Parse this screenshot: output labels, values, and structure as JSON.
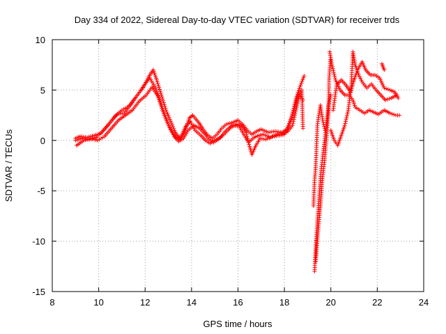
{
  "chart_data": {
    "type": "scatter",
    "title": "Day 334 of 2022, Sidereal Day-to-day VTEC variation (SDTVAR) for receiver trds",
    "xlabel": "GPS time / hours",
    "ylabel": "SDTVAR / TECUs",
    "xlim": [
      8,
      24
    ],
    "ylim": [
      -15,
      10
    ],
    "xticks": [
      "8",
      "10",
      "12",
      "14",
      "16",
      "18",
      "20",
      "22",
      "24"
    ],
    "yticks": [
      "-15",
      "-10",
      "-5",
      "0",
      "5",
      "10"
    ],
    "grid": true,
    "marker": "+",
    "series": [
      {
        "name": "SDTVAR",
        "color": "#ff0000",
        "tracks": [
          [
            [
              9.0,
              0.2
            ],
            [
              9.2,
              0.4
            ],
            [
              9.5,
              0.3
            ],
            [
              9.8,
              0.5
            ],
            [
              10.1,
              0.7
            ],
            [
              10.4,
              1.5
            ],
            [
              10.7,
              2.4
            ],
            [
              11.0,
              3.0
            ],
            [
              11.3,
              3.4
            ],
            [
              11.6,
              4.3
            ],
            [
              11.9,
              5.2
            ],
            [
              12.15,
              6.3
            ],
            [
              12.35,
              7.0
            ],
            [
              12.5,
              6.0
            ],
            [
              12.7,
              4.5
            ],
            [
              12.9,
              3.0
            ],
            [
              13.1,
              1.9
            ],
            [
              13.3,
              0.8
            ],
            [
              13.5,
              0.1
            ],
            [
              13.7,
              0.8
            ],
            [
              13.9,
              2.2
            ],
            [
              14.05,
              2.5
            ],
            [
              14.3,
              1.8
            ],
            [
              14.5,
              1.1
            ],
            [
              14.7,
              0.5
            ],
            [
              14.9,
              0.2
            ],
            [
              15.1,
              0.6
            ],
            [
              15.3,
              1.2
            ],
            [
              15.5,
              1.6
            ],
            [
              15.8,
              1.8
            ],
            [
              16.0,
              2.0
            ],
            [
              16.2,
              1.6
            ],
            [
              16.4,
              1.0
            ],
            [
              16.6,
              0.6
            ],
            [
              16.8,
              0.9
            ],
            [
              17.0,
              1.1
            ],
            [
              17.3,
              0.8
            ],
            [
              17.6,
              0.9
            ],
            [
              17.9,
              0.8
            ],
            [
              18.1,
              1.1
            ],
            [
              18.3,
              2.2
            ],
            [
              18.5,
              4.2
            ],
            [
              18.7,
              5.5
            ],
            [
              18.85,
              6.4
            ]
          ],
          [
            [
              9.0,
              0.0
            ],
            [
              9.3,
              0.2
            ],
            [
              9.6,
              0.1
            ],
            [
              9.9,
              0.3
            ],
            [
              10.2,
              1.0
            ],
            [
              10.5,
              1.8
            ],
            [
              10.8,
              2.6
            ],
            [
              11.1,
              2.7
            ],
            [
              11.4,
              3.6
            ],
            [
              11.7,
              4.6
            ],
            [
              12.0,
              5.6
            ],
            [
              12.2,
              6.2
            ],
            [
              12.45,
              5.2
            ],
            [
              12.65,
              3.9
            ],
            [
              12.85,
              2.5
            ],
            [
              13.05,
              1.3
            ],
            [
              13.25,
              0.4
            ],
            [
              13.45,
              -0.1
            ],
            [
              13.65,
              0.2
            ],
            [
              13.85,
              1.0
            ],
            [
              14.1,
              1.5
            ],
            [
              14.35,
              1.2
            ],
            [
              14.55,
              0.7
            ],
            [
              14.75,
              0.1
            ],
            [
              14.95,
              -0.2
            ],
            [
              15.15,
              0.1
            ],
            [
              15.4,
              0.6
            ],
            [
              15.7,
              1.3
            ],
            [
              15.95,
              1.6
            ],
            [
              16.15,
              1.5
            ],
            [
              16.35,
              0.8
            ],
            [
              16.5,
              -0.6
            ],
            [
              16.6,
              -1.4
            ],
            [
              16.75,
              -0.6
            ],
            [
              16.95,
              0.2
            ],
            [
              17.2,
              0.1
            ],
            [
              17.5,
              0.4
            ],
            [
              17.8,
              0.5
            ],
            [
              18.0,
              0.6
            ],
            [
              18.2,
              1.5
            ],
            [
              18.4,
              3.0
            ],
            [
              18.6,
              4.5
            ],
            [
              18.75,
              5.0
            ],
            [
              18.8,
              1.2
            ]
          ],
          [
            [
              9.05,
              -0.5
            ],
            [
              9.35,
              0.0
            ],
            [
              9.65,
              0.2
            ],
            [
              9.95,
              0.0
            ],
            [
              10.25,
              0.4
            ],
            [
              10.55,
              1.2
            ],
            [
              10.85,
              2.0
            ],
            [
              11.15,
              2.5
            ],
            [
              11.45,
              3.0
            ],
            [
              11.75,
              3.9
            ],
            [
              12.05,
              4.5
            ],
            [
              12.3,
              5.3
            ],
            [
              12.55,
              4.4
            ],
            [
              12.75,
              3.0
            ],
            [
              12.95,
              1.8
            ],
            [
              13.15,
              0.9
            ],
            [
              13.35,
              0.2
            ],
            [
              13.55,
              0.4
            ],
            [
              13.75,
              1.4
            ],
            [
              13.95,
              1.9
            ],
            [
              14.15,
              1.0
            ],
            [
              14.4,
              0.5
            ],
            [
              14.6,
              0.0
            ],
            [
              14.8,
              -0.3
            ],
            [
              15.0,
              0.0
            ],
            [
              15.25,
              0.3
            ],
            [
              15.45,
              0.9
            ],
            [
              15.75,
              1.5
            ],
            [
              16.05,
              1.4
            ],
            [
              16.25,
              0.6
            ],
            [
              16.45,
              -0.2
            ],
            [
              16.7,
              0.3
            ],
            [
              16.9,
              0.5
            ],
            [
              17.1,
              0.6
            ],
            [
              17.4,
              0.3
            ],
            [
              17.7,
              0.6
            ],
            [
              17.95,
              0.7
            ],
            [
              18.15,
              0.9
            ],
            [
              18.35,
              1.5
            ],
            [
              18.55,
              3.5
            ],
            [
              18.65,
              4.5
            ],
            [
              18.8,
              4.0
            ]
          ],
          [
            [
              19.3,
              -13.0
            ],
            [
              19.35,
              -10.5
            ],
            [
              19.42,
              -8.0
            ],
            [
              19.5,
              -5.5
            ],
            [
              19.58,
              -3.0
            ],
            [
              19.68,
              -1.0
            ],
            [
              19.78,
              1.0
            ],
            [
              19.9,
              3.5
            ],
            [
              20.0,
              4.5
            ]
          ],
          [
            [
              19.35,
              -12.0
            ],
            [
              19.45,
              -9.0
            ],
            [
              19.55,
              -6.5
            ],
            [
              19.63,
              -4.0
            ],
            [
              19.73,
              -2.0
            ],
            [
              19.82,
              0.5
            ],
            [
              19.9,
              3.0
            ],
            [
              19.92,
              6.0
            ],
            [
              19.98,
              8.0
            ]
          ],
          [
            [
              19.25,
              -6.5
            ],
            [
              19.3,
              -4.0
            ],
            [
              19.35,
              -2.5
            ],
            [
              19.42,
              1.5
            ],
            [
              19.48,
              2.5
            ],
            [
              19.55,
              3.5
            ],
            [
              19.65,
              2.0
            ],
            [
              19.75,
              1.0
            ]
          ],
          [
            [
              19.95,
              8.8
            ],
            [
              20.05,
              7.5
            ],
            [
              20.2,
              6.0
            ],
            [
              20.4,
              5.0
            ],
            [
              20.6,
              4.5
            ],
            [
              20.8,
              4.5
            ],
            [
              20.95,
              4.0
            ],
            [
              21.05,
              3.3
            ],
            [
              21.25,
              3.0
            ],
            [
              21.45,
              2.7
            ],
            [
              21.65,
              3.0
            ],
            [
              21.85,
              2.8
            ],
            [
              22.05,
              2.6
            ],
            [
              22.3,
              3.0
            ],
            [
              22.55,
              2.7
            ],
            [
              22.8,
              2.5
            ],
            [
              22.95,
              2.5
            ]
          ],
          [
            [
              20.0,
              1.0
            ],
            [
              20.15,
              0.0
            ],
            [
              20.3,
              -0.5
            ],
            [
              20.45,
              0.5
            ],
            [
              20.6,
              1.5
            ],
            [
              20.75,
              3.0
            ],
            [
              20.88,
              5.5
            ],
            [
              20.95,
              8.8
            ],
            [
              21.05,
              7.5
            ],
            [
              21.2,
              6.5
            ],
            [
              21.35,
              5.8
            ],
            [
              21.55,
              5.2
            ],
            [
              21.75,
              5.6
            ],
            [
              21.95,
              5.0
            ],
            [
              22.15,
              4.5
            ],
            [
              22.35,
              4.0
            ],
            [
              22.6,
              4.2
            ],
            [
              22.85,
              4.5
            ]
          ],
          [
            [
              20.1,
              3.0
            ],
            [
              20.25,
              5.5
            ],
            [
              20.45,
              6.0
            ],
            [
              20.65,
              5.5
            ],
            [
              20.85,
              4.8
            ],
            [
              21.0,
              6.0
            ],
            [
              21.15,
              7.0
            ],
            [
              21.35,
              7.8
            ],
            [
              21.5,
              7.0
            ],
            [
              21.7,
              6.5
            ],
            [
              21.9,
              6.5
            ],
            [
              22.1,
              6.2
            ],
            [
              22.3,
              5.2
            ],
            [
              22.55,
              5.0
            ],
            [
              22.75,
              4.8
            ],
            [
              22.9,
              4.2
            ]
          ],
          [
            [
              22.2,
              7.6
            ],
            [
              22.3,
              7.0
            ]
          ]
        ]
      }
    ]
  }
}
